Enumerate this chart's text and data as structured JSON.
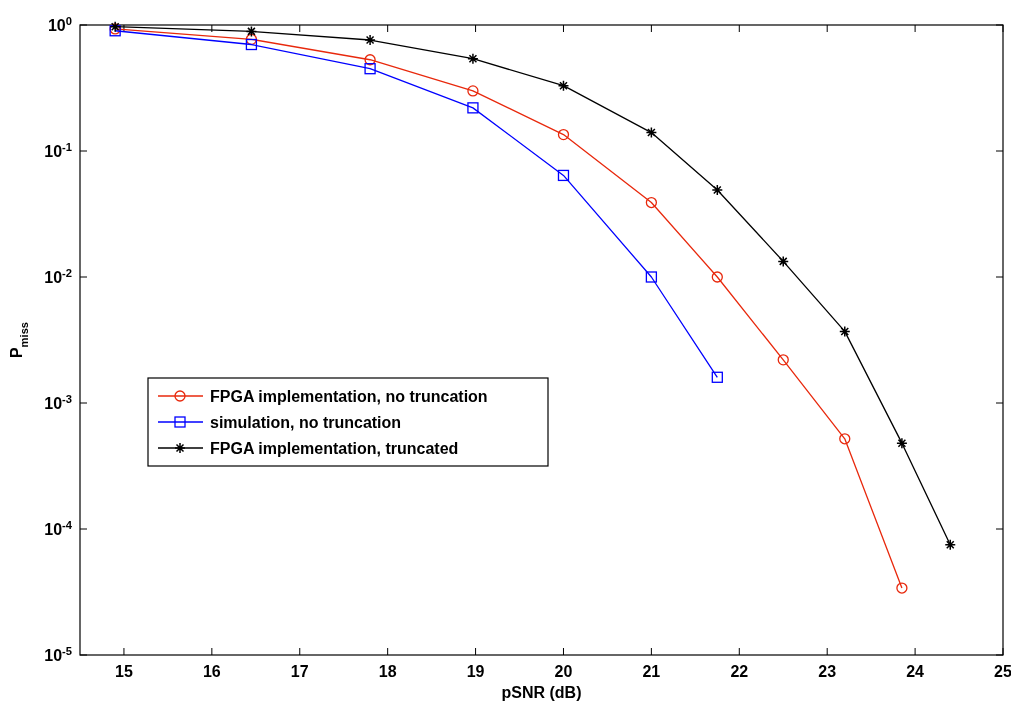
{
  "chart_data": {
    "type": "line",
    "xlabel": "pSNR (dB)",
    "ylabel": "P$_{miss}$",
    "log": "y",
    "xlim": [
      14.5,
      25
    ],
    "ylim": [
      1e-05,
      1
    ],
    "xticks": [
      15,
      16,
      17,
      18,
      19,
      20,
      21,
      22,
      23,
      24,
      25
    ],
    "yticks": [
      {
        "value": 1e-05,
        "label": "10$^{-5}$"
      },
      {
        "value": 0.0001,
        "label": "10$^{-4}$"
      },
      {
        "value": 0.001,
        "label": "10$^{-3}$"
      },
      {
        "value": 0.01,
        "label": "10$^{-2}$"
      },
      {
        "value": 0.1,
        "label": "10$^{-1}$"
      },
      {
        "value": 1,
        "label": "10$^{0}$"
      }
    ],
    "grid": false,
    "legend": "left",
    "line_style": "solid",
    "series": [
      {
        "name": "FPGA implementation, no truncation",
        "color": "#e8280c",
        "marker": "circle",
        "x": [
          14.9,
          16.45,
          17.8,
          18.97,
          20,
          21,
          21.75,
          22.5,
          23.2,
          23.85
        ],
        "values": [
          0.93,
          0.77,
          0.53,
          0.3,
          0.135,
          0.039,
          0.01,
          0.0022,
          0.00052,
          3.4e-05
        ]
      },
      {
        "name": "simulation, no truncation",
        "color": "#0000ff",
        "marker": "square",
        "x": [
          14.9,
          16.45,
          17.8,
          18.97,
          20,
          21,
          21.75
        ],
        "values": [
          0.9,
          0.7,
          0.45,
          0.22,
          0.064,
          0.01,
          0.0016
        ]
      },
      {
        "name": "FPGA implementation, truncated",
        "color": "#000000",
        "marker": "cross",
        "x": [
          14.9,
          16.45,
          17.8,
          18.97,
          20,
          21,
          21.75,
          22.5,
          23.2,
          23.85,
          24.4
        ],
        "values": [
          0.97,
          0.89,
          0.76,
          0.54,
          0.33,
          0.14,
          0.049,
          0.0133,
          0.0037,
          0.00048,
          7.5e-05
        ]
      }
    ]
  }
}
